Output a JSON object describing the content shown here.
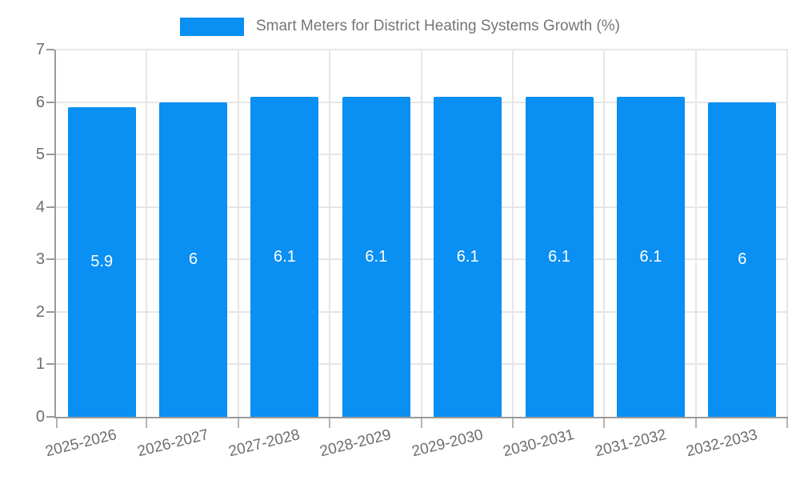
{
  "legend": {
    "label": "Smart Meters for District Heating Systems Growth (%)",
    "swatch_color": "#0a8ff2"
  },
  "chart_data": {
    "type": "bar",
    "title": "Smart Meters for District Heating Systems Growth (%)",
    "categories": [
      "2025-2026",
      "2026-2027",
      "2027-2028",
      "2028-2029",
      "2029-2030",
      "2030-2031",
      "2031-2032",
      "2032-2033"
    ],
    "values": [
      5.9,
      6,
      6.1,
      6.1,
      6.1,
      6.1,
      6.1,
      6
    ],
    "bar_labels": [
      "5.9",
      "6",
      "6.1",
      "6.1",
      "6.1",
      "6.1",
      "6.1",
      "6"
    ],
    "xlabel": "",
    "ylabel": "",
    "ylim": [
      0,
      7
    ],
    "yticks": [
      0,
      1,
      2,
      3,
      4,
      5,
      6,
      7
    ],
    "ytick_labels": [
      "0",
      "1",
      "2",
      "3",
      "4",
      "5",
      "6",
      "7"
    ],
    "grid": true,
    "legend_position": "top",
    "bar_color": "#0a8ff2",
    "value_label_color": "#ffffff",
    "grid_color": "#e6e6e6",
    "axis_color": "#9a9a9a",
    "text_color": "#6e6e6e"
  }
}
